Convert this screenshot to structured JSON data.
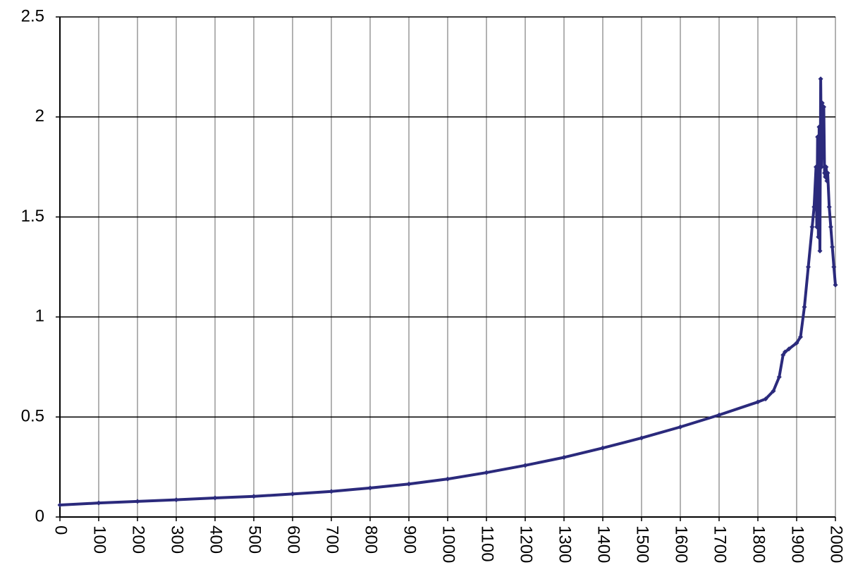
{
  "chart_data": {
    "type": "line",
    "x": [
      0,
      100,
      200,
      300,
      400,
      500,
      600,
      700,
      800,
      900,
      1000,
      1100,
      1200,
      1300,
      1400,
      1500,
      1600,
      1700,
      1800,
      1820,
      1840,
      1855,
      1865,
      1870,
      1880,
      1900,
      1910,
      1920,
      1930,
      1940,
      1945,
      1950,
      1952,
      1954,
      1956,
      1958,
      1960,
      1962,
      1964,
      1966,
      1968,
      1970,
      1972,
      1974,
      1976,
      1978,
      1980,
      1984,
      1988,
      1992,
      1996,
      2000
    ],
    "series": [
      {
        "color": "#2b2a7c",
        "values": [
          0.06,
          0.07,
          0.078,
          0.086,
          0.095,
          0.103,
          0.115,
          0.128,
          0.145,
          0.165,
          0.19,
          0.222,
          0.258,
          0.298,
          0.345,
          0.395,
          0.45,
          0.51,
          0.575,
          0.59,
          0.63,
          0.7,
          0.81,
          0.825,
          0.84,
          0.87,
          0.9,
          1.05,
          1.25,
          1.45,
          1.55,
          1.75,
          1.45,
          1.9,
          1.4,
          1.95,
          1.33,
          2.19,
          1.75,
          2.07,
          1.8,
          2.05,
          1.72,
          1.7,
          1.75,
          1.68,
          1.72,
          1.55,
          1.45,
          1.35,
          1.25,
          1.16
        ]
      }
    ],
    "xlim": [
      0,
      2000
    ],
    "xticks": [
      0,
      100,
      200,
      300,
      400,
      500,
      600,
      700,
      800,
      900,
      1000,
      1100,
      1200,
      1300,
      1400,
      1500,
      1600,
      1700,
      1800,
      1900,
      2000
    ],
    "ylim": [
      0,
      2.5
    ],
    "yticks": [
      0,
      0.5,
      1,
      1.5,
      2,
      2.5
    ],
    "grid": true
  }
}
